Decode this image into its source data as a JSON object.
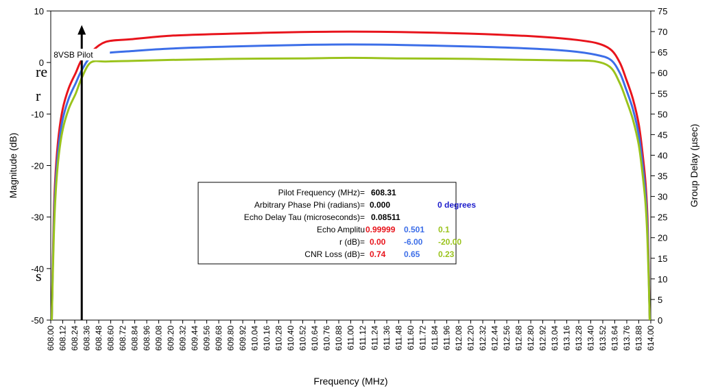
{
  "chart_data": {
    "type": "line",
    "xlabel": "Frequency (MHz)",
    "ylabel_left": "Magnitude (dB)",
    "ylabel_right": "Group Delay (µsec)",
    "xlim": [
      608.0,
      614.0
    ],
    "ylim_left": [
      -50,
      10
    ],
    "ylim_right": [
      0,
      75
    ],
    "y_ticks_left": [
      "10",
      "0",
      "-10",
      "-20",
      "-30",
      "-40",
      "-50"
    ],
    "y_ticks_right": [
      "75",
      "70",
      "65",
      "60",
      "55",
      "50",
      "45",
      "40",
      "35",
      "30",
      "25",
      "20",
      "15",
      "10",
      "5",
      "0"
    ],
    "x_ticks": [
      "608.00",
      "608.12",
      "608.24",
      "608.36",
      "608.48",
      "608.60",
      "608.72",
      "608.84",
      "608.96",
      "609.08",
      "609.20",
      "609.32",
      "609.44",
      "609.56",
      "609.68",
      "609.80",
      "609.92",
      "610.04",
      "610.16",
      "610.28",
      "610.40",
      "610.52",
      "610.64",
      "610.76",
      "610.88",
      "611.00",
      "611.12",
      "611.24",
      "611.36",
      "611.48",
      "611.60",
      "611.72",
      "611.84",
      "611.96",
      "612.08",
      "612.20",
      "612.32",
      "612.44",
      "612.56",
      "612.68",
      "612.80",
      "612.92",
      "613.04",
      "613.16",
      "613.28",
      "613.40",
      "613.52",
      "613.64",
      "613.76",
      "613.88",
      "614.00"
    ],
    "grid": false,
    "series": [
      {
        "color": "#e8141c",
        "x": [
          608.01,
          608.03,
          608.05,
          608.08,
          608.12,
          608.18,
          608.25,
          608.31,
          608.4,
          608.55,
          608.8,
          609.2,
          609.8,
          610.5,
          611.0,
          611.5,
          612.2,
          612.8,
          613.2,
          613.45,
          613.6,
          613.69,
          613.75,
          613.82,
          613.88,
          613.92,
          613.95,
          613.97,
          613.99
        ],
        "y": [
          -50,
          -30,
          -21,
          -14,
          -9,
          -5,
          -2,
          0.5,
          2,
          4,
          4.5,
          5.2,
          5.6,
          5.9,
          6,
          5.9,
          5.6,
          5.1,
          4.5,
          3.8,
          2.5,
          0,
          -3,
          -7,
          -12,
          -18,
          -24,
          -32,
          -50
        ]
      },
      {
        "color": "#3c6ee8",
        "x": [
          608.01,
          608.03,
          608.05,
          608.08,
          608.12,
          608.18,
          608.25,
          608.31,
          608.4,
          608.55,
          608.8,
          609.2,
          609.8,
          610.5,
          611.0,
          611.5,
          612.2,
          612.8,
          613.2,
          613.45,
          613.6,
          613.69,
          613.75,
          613.82,
          613.88,
          613.92,
          613.95,
          613.97,
          613.99
        ],
        "y": [
          -50,
          -32,
          -23,
          -16,
          -11,
          -7,
          -4,
          -1.5,
          1,
          1.8,
          2.2,
          2.7,
          3.1,
          3.4,
          3.5,
          3.4,
          3.1,
          2.7,
          2.2,
          1.5,
          0.5,
          -2,
          -5,
          -9,
          -14,
          -20,
          -26,
          -34,
          -50
        ]
      },
      {
        "color": "#9ac31c",
        "x": [
          608.01,
          608.03,
          608.05,
          608.08,
          608.12,
          608.18,
          608.25,
          608.31,
          608.4,
          608.55,
          608.8,
          609.2,
          609.8,
          610.5,
          611.0,
          611.5,
          612.2,
          612.8,
          613.2,
          613.45,
          613.6,
          613.69,
          613.75,
          613.82,
          613.88,
          613.92,
          613.95,
          613.97,
          613.99
        ],
        "y": [
          -50,
          -34,
          -25,
          -18,
          -13,
          -9,
          -6,
          -3,
          0,
          0.2,
          0.3,
          0.5,
          0.7,
          0.8,
          0.9,
          0.8,
          0.7,
          0.5,
          0.4,
          0.2,
          -1,
          -4,
          -7,
          -11,
          -16,
          -22,
          -28,
          -36,
          -50
        ]
      }
    ],
    "annotation": {
      "label": "8VSB Pilot",
      "x": 608.31,
      "y_from": -50,
      "y_to": 7
    },
    "side_text_fragments": [
      "re",
      "r",
      "s"
    ],
    "legend_box": {
      "rows": [
        {
          "label": "Pilot Frequency (MHz)=",
          "values": [
            {
              "text": "608.31",
              "color": "#000000"
            }
          ]
        },
        {
          "label": "Arbitrary Phase Phi (radians)=",
          "values": [
            {
              "text": "0.000",
              "color": "#000000"
            },
            {
              "text": "0 degrees",
              "color": "#1c1ccc"
            }
          ]
        },
        {
          "label": "Echo Delay Tau (microseconds)=",
          "values": [
            {
              "text": "0.08511",
              "color": "#000000"
            }
          ]
        },
        {
          "label": "Echo Amplitu",
          "values": [
            {
              "text": "0.99999",
              "color": "#e8141c"
            },
            {
              "text": "0.501",
              "color": "#3c6ee8"
            },
            {
              "text": "0.1",
              "color": "#9ac31c"
            }
          ]
        },
        {
          "label": "r (dB)=",
          "values": [
            {
              "text": "0.00",
              "color": "#e8141c"
            },
            {
              "text": "-6.00",
              "color": "#3c6ee8"
            },
            {
              "text": "-20.00",
              "color": "#9ac31c"
            }
          ]
        },
        {
          "label": "CNR Loss (dB)=",
          "values": [
            {
              "text": "0.74",
              "color": "#e8141c"
            },
            {
              "text": "0.65",
              "color": "#3c6ee8"
            },
            {
              "text": "0.23",
              "color": "#9ac31c"
            }
          ]
        }
      ]
    }
  }
}
